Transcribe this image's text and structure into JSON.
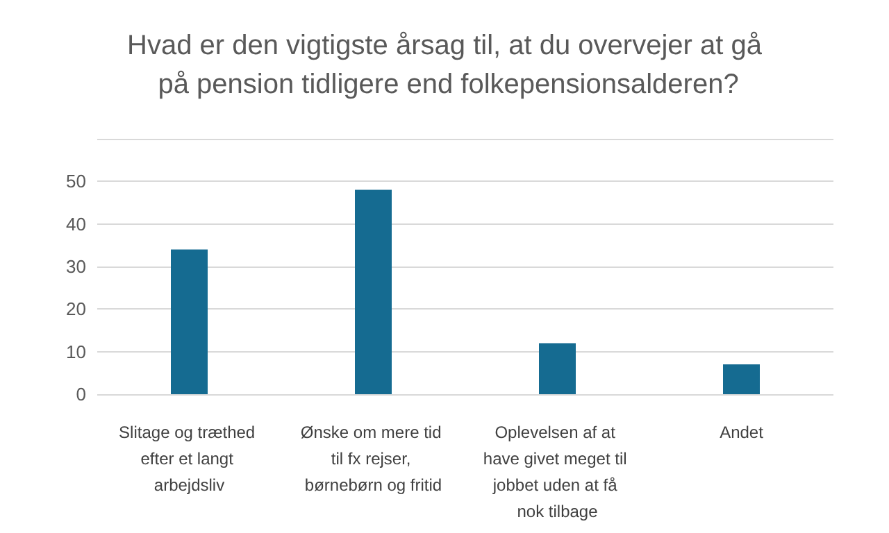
{
  "chart_data": {
    "type": "bar",
    "title": "Hvad er den vigtigste årsag til, at du overvejer at gå på pension tidligere end folkepensionsalderen?",
    "categories": [
      "Slitage og træthed efter et langt arbejdsliv",
      "Ønske om mere tid til fx rejser, børnebørn og fritid",
      "Oplevelsen af at have givet meget til jobbet uden at få nok tilbage",
      "Andet"
    ],
    "values": [
      34,
      48,
      12,
      7
    ],
    "color": "#156b91",
    "ylim": [
      0,
      60
    ],
    "yticks": [
      0,
      10,
      20,
      30,
      40,
      50,
      {
        "value": 60,
        "label": null
      }
    ],
    "grid": "y"
  }
}
